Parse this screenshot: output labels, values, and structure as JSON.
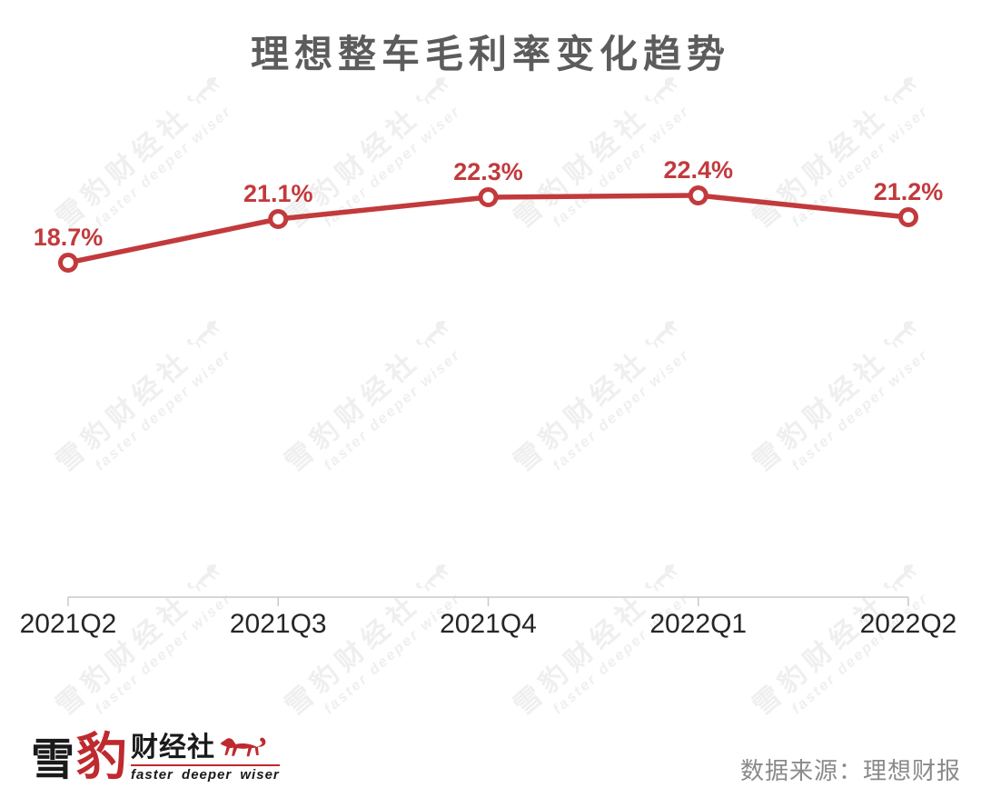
{
  "title": "理想整车毛利率变化趋势",
  "source": "数据来源：理想财报",
  "watermark": {
    "line1": "雪豹财经社",
    "line2": "faster deeper wiser"
  },
  "logo": {
    "char1": "雪",
    "char2": "豹",
    "char3": "财经社",
    "tagline": "faster deeper wiser"
  },
  "colors": {
    "line": "#c23a3c",
    "point_fill": "#ffffff",
    "data_label": "#c23a3c",
    "title": "#5c5c5c",
    "axis_label": "#262626",
    "axis_line": "#c9c9c9",
    "source": "#8a8a8a",
    "watermark": "#efefef",
    "logo_red": "#bf2a2e",
    "logo_black": "#1a1a1a"
  },
  "chart_data": {
    "type": "line",
    "title": "理想整车毛利率变化趋势",
    "categories": [
      "2021Q2",
      "2021Q3",
      "2021Q4",
      "2022Q1",
      "2022Q2"
    ],
    "values": [
      18.7,
      21.1,
      22.3,
      22.4,
      21.2
    ],
    "labels": [
      "18.7%",
      "21.1%",
      "22.3%",
      "22.4%",
      "21.2%"
    ],
    "unit": "%",
    "xlabel": "",
    "ylabel": "",
    "ylim": [
      0,
      25
    ],
    "grid": false,
    "legend": false,
    "marker": "open-circle",
    "label_position": "above-points",
    "x_axis": "bottom"
  }
}
